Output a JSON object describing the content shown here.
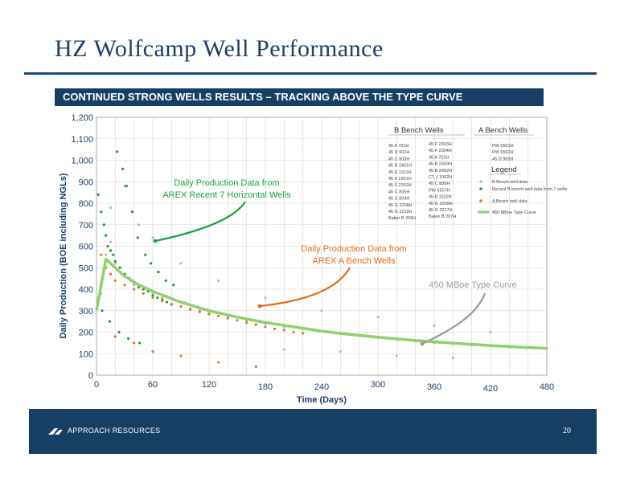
{
  "slide": {
    "title": "HZ Wolfcamp Well Performance",
    "banner": "CONTINUED STRONG WELLS RESULTS – TRACKING ABOVE THE TYPE CURVE",
    "footer_company": "APPROACH RESOURCES",
    "page_number": "20"
  },
  "colors": {
    "navy": "#163f63",
    "b_bench_points": "#b9b9b9",
    "recent_b_bench_points": "#1f9a3a",
    "a_bench_points": "#e8731a",
    "type_curve": "#8fd16a",
    "annotation_green": "#1aa33a",
    "annotation_orange": "#e06a12",
    "annotation_gray": "#9a9a9a"
  },
  "chart_data": {
    "type": "scatter",
    "xlabel": "Time (Days)",
    "ylabel": "Daily Production (BOE including NGLs)",
    "xlim": [
      0,
      480
    ],
    "ylim": [
      0,
      1200
    ],
    "x_ticks": [
      0,
      60,
      120,
      180,
      240,
      300,
      360,
      420,
      480
    ],
    "y_ticks": [
      0,
      100,
      200,
      300,
      400,
      500,
      600,
      700,
      800,
      900,
      1000,
      1100,
      1200
    ],
    "y_tick_labels": [
      "0",
      "100",
      "200",
      "300",
      "400",
      "500",
      "600",
      "700",
      "800",
      "900",
      "1,000",
      "1,100",
      "1,200"
    ],
    "grid": true,
    "series": [
      {
        "name": "B Bench well data",
        "marker": "point",
        "points": [
          [
            5,
            380
          ],
          [
            10,
            560
          ],
          [
            15,
            620
          ],
          [
            20,
            520
          ],
          [
            25,
            480
          ],
          [
            30,
            470
          ],
          [
            40,
            420
          ],
          [
            50,
            400
          ],
          [
            60,
            380
          ],
          [
            70,
            360
          ],
          [
            80,
            330
          ],
          [
            90,
            320
          ],
          [
            100,
            310
          ],
          [
            110,
            300
          ],
          [
            120,
            285
          ],
          [
            140,
            270
          ],
          [
            160,
            255
          ],
          [
            180,
            240
          ],
          [
            200,
            225
          ],
          [
            220,
            215
          ],
          [
            240,
            205
          ],
          [
            260,
            195
          ],
          [
            280,
            185
          ],
          [
            300,
            175
          ],
          [
            320,
            165
          ],
          [
            340,
            158
          ],
          [
            360,
            150
          ],
          [
            380,
            145
          ],
          [
            400,
            140
          ],
          [
            420,
            135
          ],
          [
            440,
            130
          ],
          [
            460,
            128
          ],
          [
            480,
            125
          ],
          [
            15,
            780
          ],
          [
            30,
            880
          ],
          [
            45,
            700
          ],
          [
            60,
            640
          ],
          [
            90,
            520
          ],
          [
            130,
            440
          ],
          [
            180,
            360
          ],
          [
            240,
            300
          ],
          [
            300,
            270
          ],
          [
            360,
            230
          ],
          [
            420,
            200
          ],
          [
            200,
            120
          ],
          [
            260,
            110
          ],
          [
            320,
            90
          ],
          [
            380,
            80
          ]
        ]
      },
      {
        "name": "Recent B bench well data from 7 wells",
        "marker": "point",
        "points": [
          [
            2,
            840
          ],
          [
            5,
            760
          ],
          [
            8,
            700
          ],
          [
            10,
            650
          ],
          [
            12,
            600
          ],
          [
            15,
            580
          ],
          [
            18,
            560
          ],
          [
            20,
            530
          ],
          [
            25,
            500
          ],
          [
            30,
            470
          ],
          [
            35,
            450
          ],
          [
            40,
            430
          ],
          [
            45,
            410
          ],
          [
            50,
            400
          ],
          [
            55,
            390
          ],
          [
            60,
            370
          ],
          [
            65,
            360
          ],
          [
            70,
            350
          ],
          [
            75,
            340
          ],
          [
            80,
            330
          ],
          [
            22,
            1040
          ],
          [
            28,
            960
          ],
          [
            32,
            880
          ],
          [
            38,
            760
          ],
          [
            44,
            640
          ],
          [
            52,
            560
          ],
          [
            58,
            520
          ],
          [
            66,
            480
          ],
          [
            74,
            440
          ],
          [
            82,
            420
          ],
          [
            6,
            300
          ],
          [
            14,
            250
          ],
          [
            24,
            200
          ],
          [
            34,
            170
          ],
          [
            46,
            150
          ]
        ]
      },
      {
        "name": "A Bench well data",
        "marker": "point",
        "points": [
          [
            5,
            560
          ],
          [
            10,
            500
          ],
          [
            15,
            470
          ],
          [
            20,
            440
          ],
          [
            30,
            420
          ],
          [
            40,
            400
          ],
          [
            50,
            380
          ],
          [
            60,
            360
          ],
          [
            70,
            345
          ],
          [
            80,
            330
          ],
          [
            90,
            320
          ],
          [
            100,
            305
          ],
          [
            110,
            295
          ],
          [
            120,
            285
          ],
          [
            130,
            275
          ],
          [
            140,
            265
          ],
          [
            150,
            255
          ],
          [
            160,
            245
          ],
          [
            170,
            235
          ],
          [
            180,
            225
          ],
          [
            190,
            215
          ],
          [
            200,
            210
          ],
          [
            210,
            200
          ],
          [
            220,
            195
          ],
          [
            20,
            180
          ],
          [
            40,
            150
          ],
          [
            60,
            110
          ],
          [
            90,
            90
          ],
          [
            130,
            60
          ],
          [
            170,
            40
          ]
        ]
      },
      {
        "name": "450 MBoe Type Curve",
        "marker": "line",
        "points": [
          [
            0,
            300
          ],
          [
            10,
            540
          ],
          [
            20,
            500
          ],
          [
            30,
            460
          ],
          [
            45,
            420
          ],
          [
            60,
            390
          ],
          [
            90,
            340
          ],
          [
            120,
            300
          ],
          [
            150,
            270
          ],
          [
            180,
            245
          ],
          [
            210,
            225
          ],
          [
            240,
            205
          ],
          [
            270,
            190
          ],
          [
            300,
            177
          ],
          [
            330,
            165
          ],
          [
            360,
            155
          ],
          [
            390,
            146
          ],
          [
            420,
            138
          ],
          [
            450,
            131
          ],
          [
            480,
            125
          ]
        ]
      }
    ],
    "legend": {
      "title": "Legend",
      "placement": "top-right",
      "entries": [
        "B Bench well data",
        "Recent B bench well data from 7 wells",
        "A Bench well data",
        "450 MBoe Type Curve"
      ]
    },
    "well_lists": {
      "b_bench_title": "B Bench Wells",
      "a_bench_title": "A Bench Wells",
      "b_bench_col1": [
        "45 A 701H",
        "45 D 902H",
        "45 C 903H",
        "45 B 2401H",
        "45 E 1101H",
        "45 F 2301H",
        "45 F 2302H",
        "45 C 805H",
        "45 C 804H",
        "45 G 2208H",
        "45 G 2216H",
        "Baker B 206H"
      ],
      "b_bench_col2": [
        "45 F 2303H",
        "45 F 2304H",
        "45 A 702H",
        "45 B 2403H",
        "45 B 2402H",
        "CT J 1002H",
        "45 C 806H",
        "PW 6507H",
        "45 E 1102H",
        "45 G 2209H",
        "45 G 2217H",
        "Baker B 207H"
      ],
      "a_bench": [
        "PW 6501H",
        "PW 6502H",
        "45 D 905H"
      ]
    },
    "annotations": [
      {
        "text_lines": [
          "Daily Production Data from",
          "AREX Recent 7 Horizontal Wells"
        ],
        "color": "annotation_green"
      },
      {
        "text_lines": [
          "Daily Production Data from",
          "AREX A Bench Wells"
        ],
        "color": "annotation_orange"
      },
      {
        "text_lines": [
          "450 MBoe Type Curve"
        ],
        "color": "annotation_gray"
      }
    ]
  }
}
